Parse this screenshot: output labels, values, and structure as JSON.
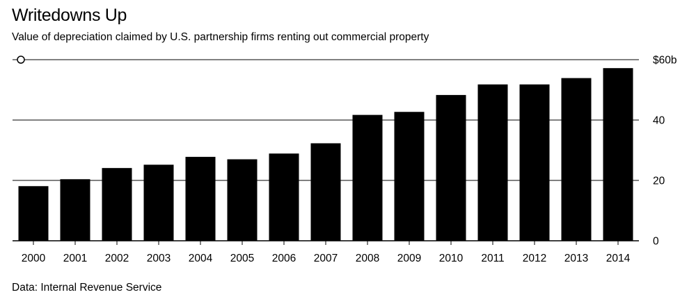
{
  "header": {
    "title": "Writedowns Up",
    "subtitle": "Value of depreciation claimed by U.S. partnership firms renting out commercial property"
  },
  "footer": {
    "source": "Data: Internal Revenue Service"
  },
  "chart_data": {
    "type": "bar",
    "title": "Writedowns Up",
    "subtitle": "Value of depreciation claimed by U.S. partnership firms renting out commercial property",
    "categories": [
      "2000",
      "2001",
      "2002",
      "2003",
      "2004",
      "2005",
      "2006",
      "2007",
      "2008",
      "2009",
      "2010",
      "2011",
      "2012",
      "2013",
      "2014"
    ],
    "values": [
      18.1,
      20.4,
      24.1,
      25.2,
      27.8,
      27.0,
      28.9,
      32.3,
      41.7,
      42.7,
      48.3,
      51.8,
      51.8,
      53.9,
      57.2
    ],
    "ylim": [
      0,
      60
    ],
    "yticks": [
      0,
      20,
      40,
      60
    ],
    "ytick_labels": [
      "0",
      "20",
      "40",
      "$60b"
    ],
    "bar_color": "#000000",
    "gridlines": true,
    "yaxis_position": "right",
    "source": "Data: Internal Revenue Service"
  }
}
